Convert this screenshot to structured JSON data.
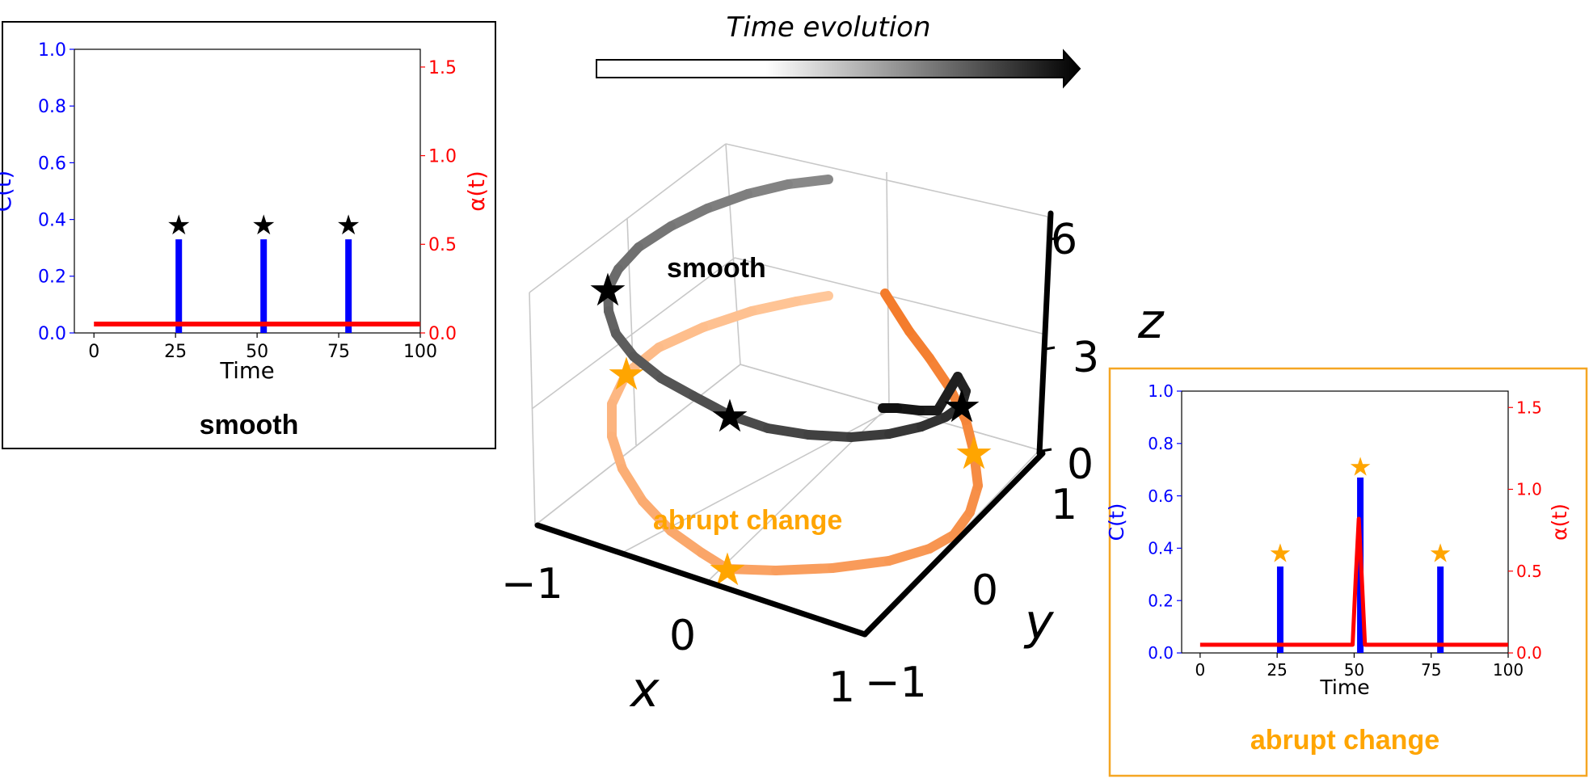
{
  "header": {
    "title": "Time evolution"
  },
  "chart_data": [
    {
      "type": "bar",
      "panel": "smooth",
      "caption": "smooth",
      "xlabel": "Time",
      "ylabel_left": "C(t)",
      "ylabel_right": "α(t)",
      "xlim": [
        -6,
        100
      ],
      "ylim_left": [
        0,
        1.0
      ],
      "ylim_right": [
        0,
        1.6
      ],
      "xticks": [
        "0",
        "25",
        "50",
        "75",
        "100"
      ],
      "yticks_left": [
        "0.0",
        "0.2",
        "0.4",
        "0.6",
        "0.8",
        "1.0"
      ],
      "yticks_right": [
        "0.0",
        "0.5",
        "1.0",
        "1.5"
      ],
      "bars": {
        "x": [
          26,
          52,
          78
        ],
        "values": [
          0.33,
          0.33,
          0.33
        ],
        "color": "#0000ff"
      },
      "alpha_line": {
        "x": [
          0,
          100
        ],
        "values": [
          0.05,
          0.05
        ],
        "color": "#ff0000"
      },
      "markers": {
        "symbol": "★",
        "color": "#000000",
        "x": [
          26,
          52,
          78
        ],
        "y": [
          0.385,
          0.385,
          0.385
        ]
      },
      "legend": "none",
      "grid": false
    },
    {
      "type": "bar",
      "panel": "abrupt change",
      "caption": "abrupt change",
      "xlabel": "Time",
      "ylabel_left": "C(t)",
      "ylabel_right": "α(t)",
      "xlim": [
        -6,
        100
      ],
      "ylim_left": [
        0,
        1.0
      ],
      "ylim_right": [
        0,
        1.6
      ],
      "xticks": [
        "0",
        "25",
        "50",
        "75",
        "100"
      ],
      "yticks_left": [
        "0.0",
        "0.2",
        "0.4",
        "0.6",
        "0.8",
        "1.0"
      ],
      "yticks_right": [
        "0.0",
        "0.5",
        "1.0",
        "1.5"
      ],
      "bars": {
        "x": [
          26,
          52,
          78
        ],
        "values": [
          0.33,
          0.67,
          0.33
        ],
        "color": "#0000ff"
      },
      "alpha_line": {
        "x": [
          0,
          49.5,
          50.5,
          51.5,
          52.5,
          53.5,
          100
        ],
        "values": [
          0.05,
          0.05,
          0.45,
          0.82,
          0.45,
          0.05,
          0.05
        ],
        "color": "#ff0000"
      },
      "markers": {
        "symbol": "★",
        "color": "#ffa500",
        "x": [
          26,
          52,
          78
        ],
        "y": [
          0.385,
          0.715,
          0.385
        ]
      },
      "legend": "none",
      "grid": false
    },
    {
      "type": "line",
      "panel": "3d-trajectories",
      "xlabel": "x",
      "ylabel": "y",
      "zlabel": "z",
      "xlim": [
        -1,
        1
      ],
      "ylim": [
        -1,
        1
      ],
      "zlim": [
        0,
        6
      ],
      "xticks": [
        "−1",
        "0",
        "1"
      ],
      "yticks": [
        "−1",
        "0",
        "1"
      ],
      "zticks": [
        "0",
        "3",
        "6"
      ],
      "grid": true,
      "series": [
        {
          "name": "smooth",
          "color_start": "#888888",
          "color_end": "#111111",
          "marker_color": "#000000"
        },
        {
          "name": "abrupt change",
          "color_start": "#ffc79a",
          "color_end": "#f47c2c",
          "marker_color": "#ffa500"
        }
      ]
    }
  ]
}
